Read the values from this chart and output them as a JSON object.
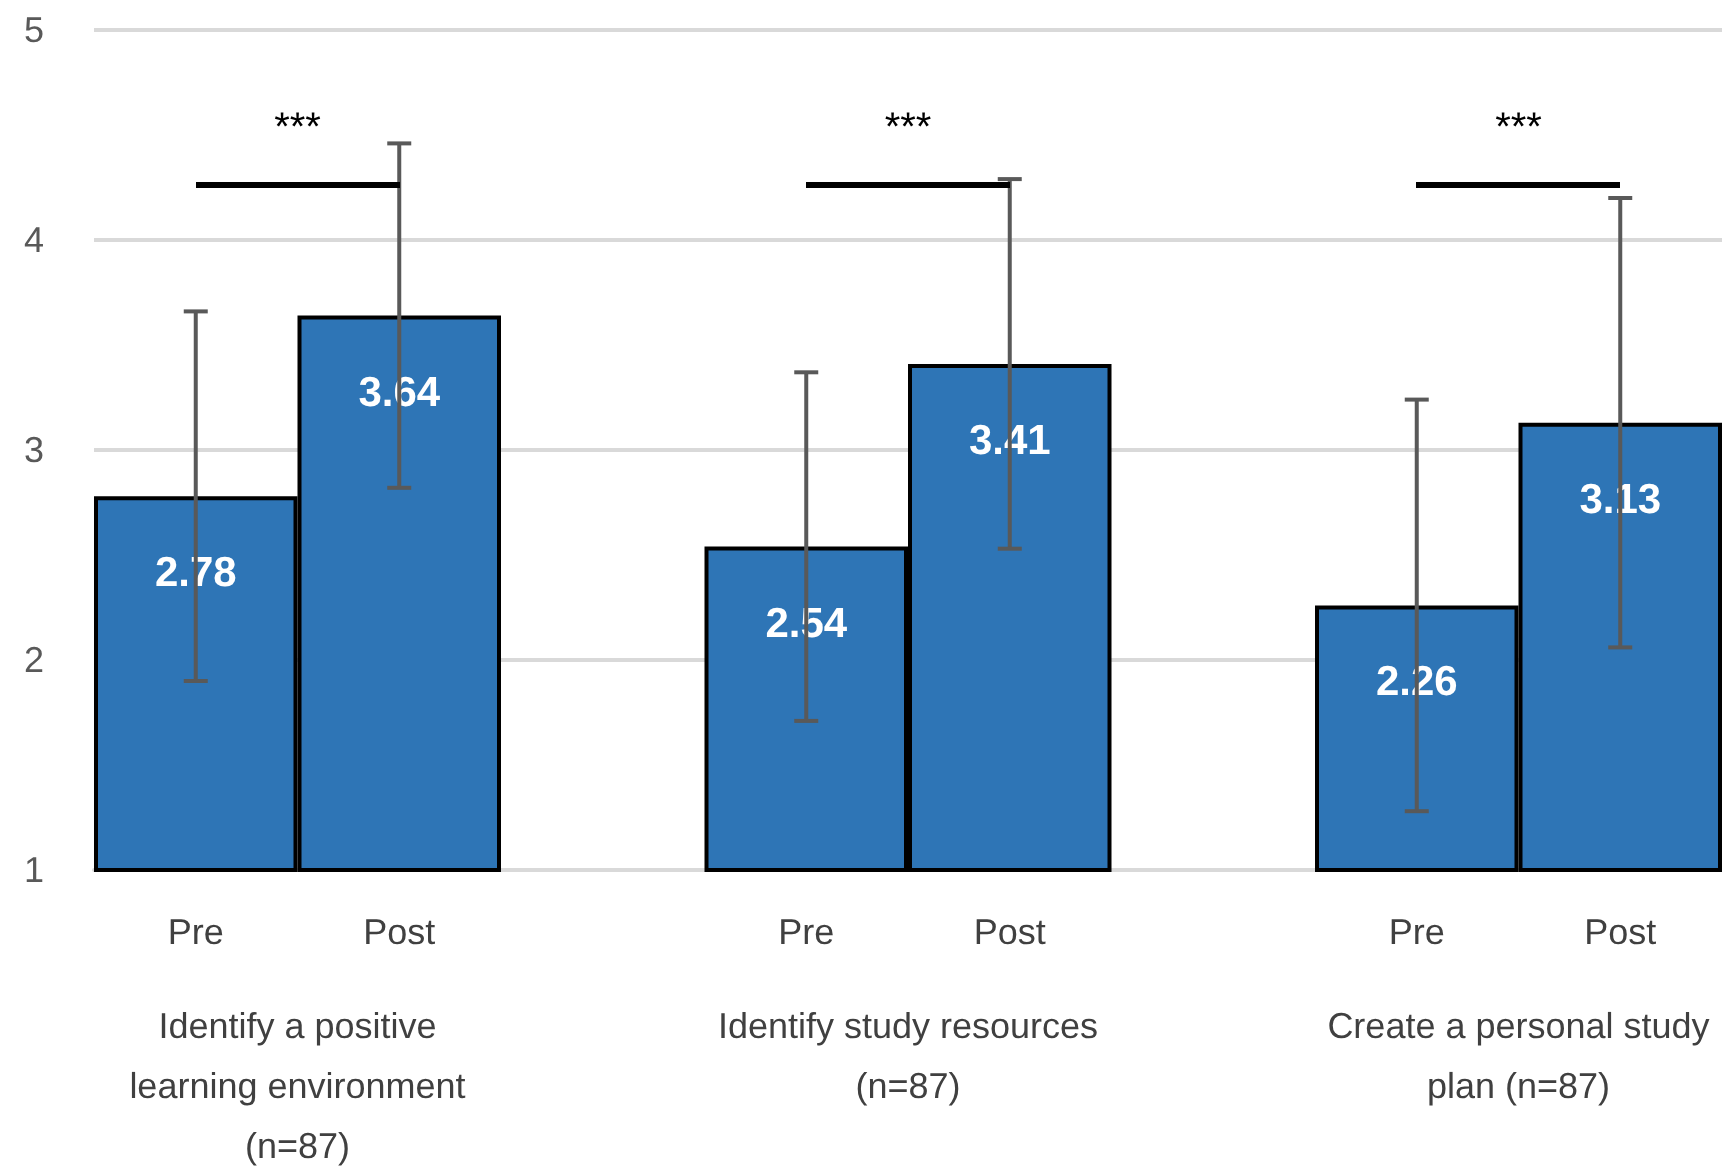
{
  "chart_data": {
    "type": "bar",
    "categories": [
      "Pre",
      "Post",
      null,
      "Pre",
      "Post",
      null,
      "Pre",
      "Post"
    ],
    "values": [
      2.78,
      3.64,
      null,
      2.54,
      3.41,
      null,
      2.26,
      3.13
    ],
    "errors": [
      [
        1.9,
        3.66
      ],
      [
        2.82,
        4.46
      ],
      null,
      [
        1.71,
        3.37
      ],
      [
        2.53,
        4.29
      ],
      null,
      [
        1.28,
        3.24
      ],
      [
        2.06,
        4.2
      ]
    ],
    "color": "#2e75b6",
    "data_labels": true,
    "ylim": [
      1,
      5
    ],
    "yticks": [
      1,
      2,
      3,
      4,
      5
    ],
    "grid": "y",
    "annotations": [
      "Identify a positive learning environment (n=87)",
      "Identify study resources (n=87)",
      "Create a personal study plan (n=87)",
      "***",
      "***",
      "***"
    ]
  }
}
